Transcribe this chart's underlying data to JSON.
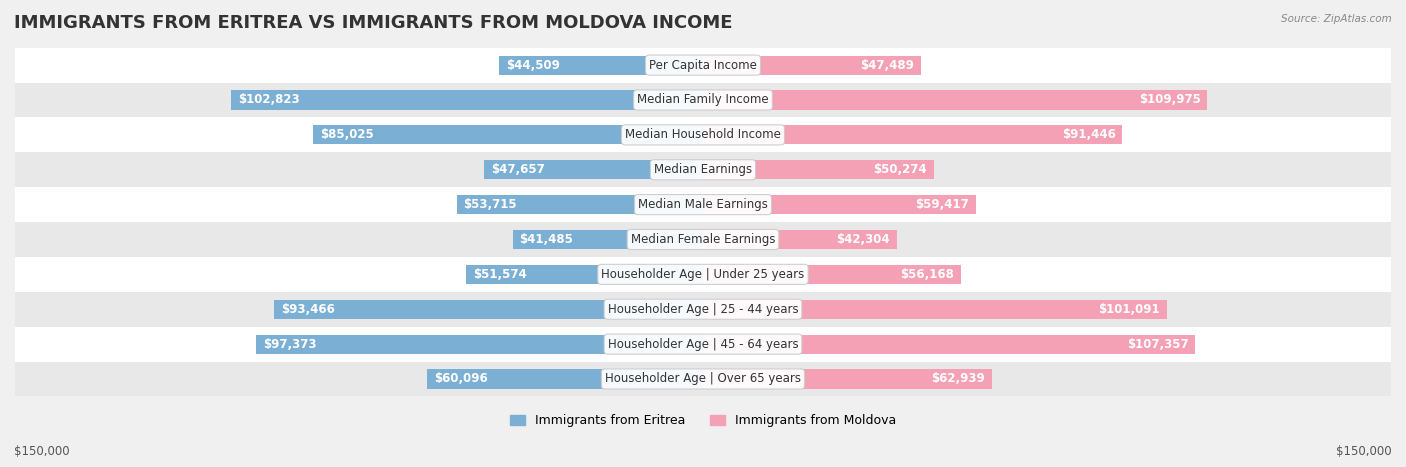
{
  "title": "IMMIGRANTS FROM ERITREA VS IMMIGRANTS FROM MOLDOVA INCOME",
  "source": "Source: ZipAtlas.com",
  "categories": [
    "Per Capita Income",
    "Median Family Income",
    "Median Household Income",
    "Median Earnings",
    "Median Male Earnings",
    "Median Female Earnings",
    "Householder Age | Under 25 years",
    "Householder Age | 25 - 44 years",
    "Householder Age | 45 - 64 years",
    "Householder Age | Over 65 years"
  ],
  "eritrea_values": [
    44509,
    102823,
    85025,
    47657,
    53715,
    41485,
    51574,
    93466,
    97373,
    60096
  ],
  "moldova_values": [
    47489,
    109975,
    91446,
    50274,
    59417,
    42304,
    56168,
    101091,
    107357,
    62939
  ],
  "eritrea_labels": [
    "$44,509",
    "$102,823",
    "$85,025",
    "$47,657",
    "$53,715",
    "$41,485",
    "$51,574",
    "$93,466",
    "$97,373",
    "$60,096"
  ],
  "moldova_labels": [
    "$47,489",
    "$109,975",
    "$91,446",
    "$50,274",
    "$59,417",
    "$42,304",
    "$56,168",
    "$101,091",
    "$107,357",
    "$62,939"
  ],
  "eritrea_color": "#7bafd4",
  "moldova_color": "#f4a0b5",
  "eritrea_color_dark": "#5b8fbf",
  "moldova_color_dark": "#e8708a",
  "max_value": 150000,
  "xlabel_left": "$150,000",
  "xlabel_right": "$150,000",
  "legend_eritrea": "Immigrants from Eritrea",
  "legend_moldova": "Immigrants from Moldova",
  "background_color": "#f0f0f0",
  "row_bg_color": "#e8e8e8",
  "title_fontsize": 13,
  "label_fontsize": 8.5
}
